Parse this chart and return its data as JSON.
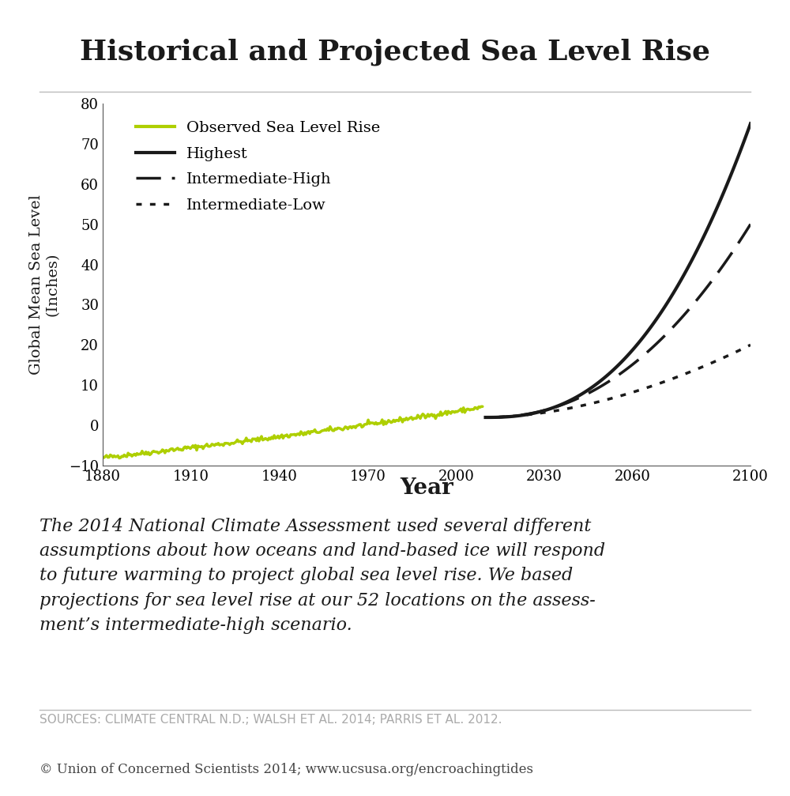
{
  "title": "Historical and Projected Sea Level Rise",
  "xlabel": "Year",
  "ylabel": "Global Mean Sea Level\n(Inches)",
  "xlim": [
    1880,
    2100
  ],
  "ylim": [
    -10,
    80
  ],
  "yticks": [
    -10,
    0,
    10,
    20,
    30,
    40,
    50,
    60,
    70,
    80
  ],
  "xticks": [
    1880,
    1910,
    1940,
    1970,
    2000,
    2030,
    2060,
    2100
  ],
  "observed_color": "#aecf00",
  "projection_color": "#1a1a1a",
  "sources_text": "SOURCES: CLIMATE CENTRAL N.D.; WALSH ET AL. 2014; PARRIS ET AL. 2012.",
  "copyright_text": "© Union of Concerned Scientists 2014; www.ucsusa.org/encroachingtides",
  "legend_labels": [
    "Observed Sea Level Rise",
    "Highest",
    "Intermediate-High",
    "Intermediate-Low"
  ],
  "background_color": "#ffffff",
  "body_line1": "The 2014 National Climate Assessment used several different",
  "body_line2": "assumptions about how oceans and land-based ice will respond",
  "body_line3": "to future warming to project global sea level rise. We based",
  "body_line4": "projections for sea level rise at our 52 locations on the assess-",
  "body_line5": "ment’s intermediate-high scenario."
}
